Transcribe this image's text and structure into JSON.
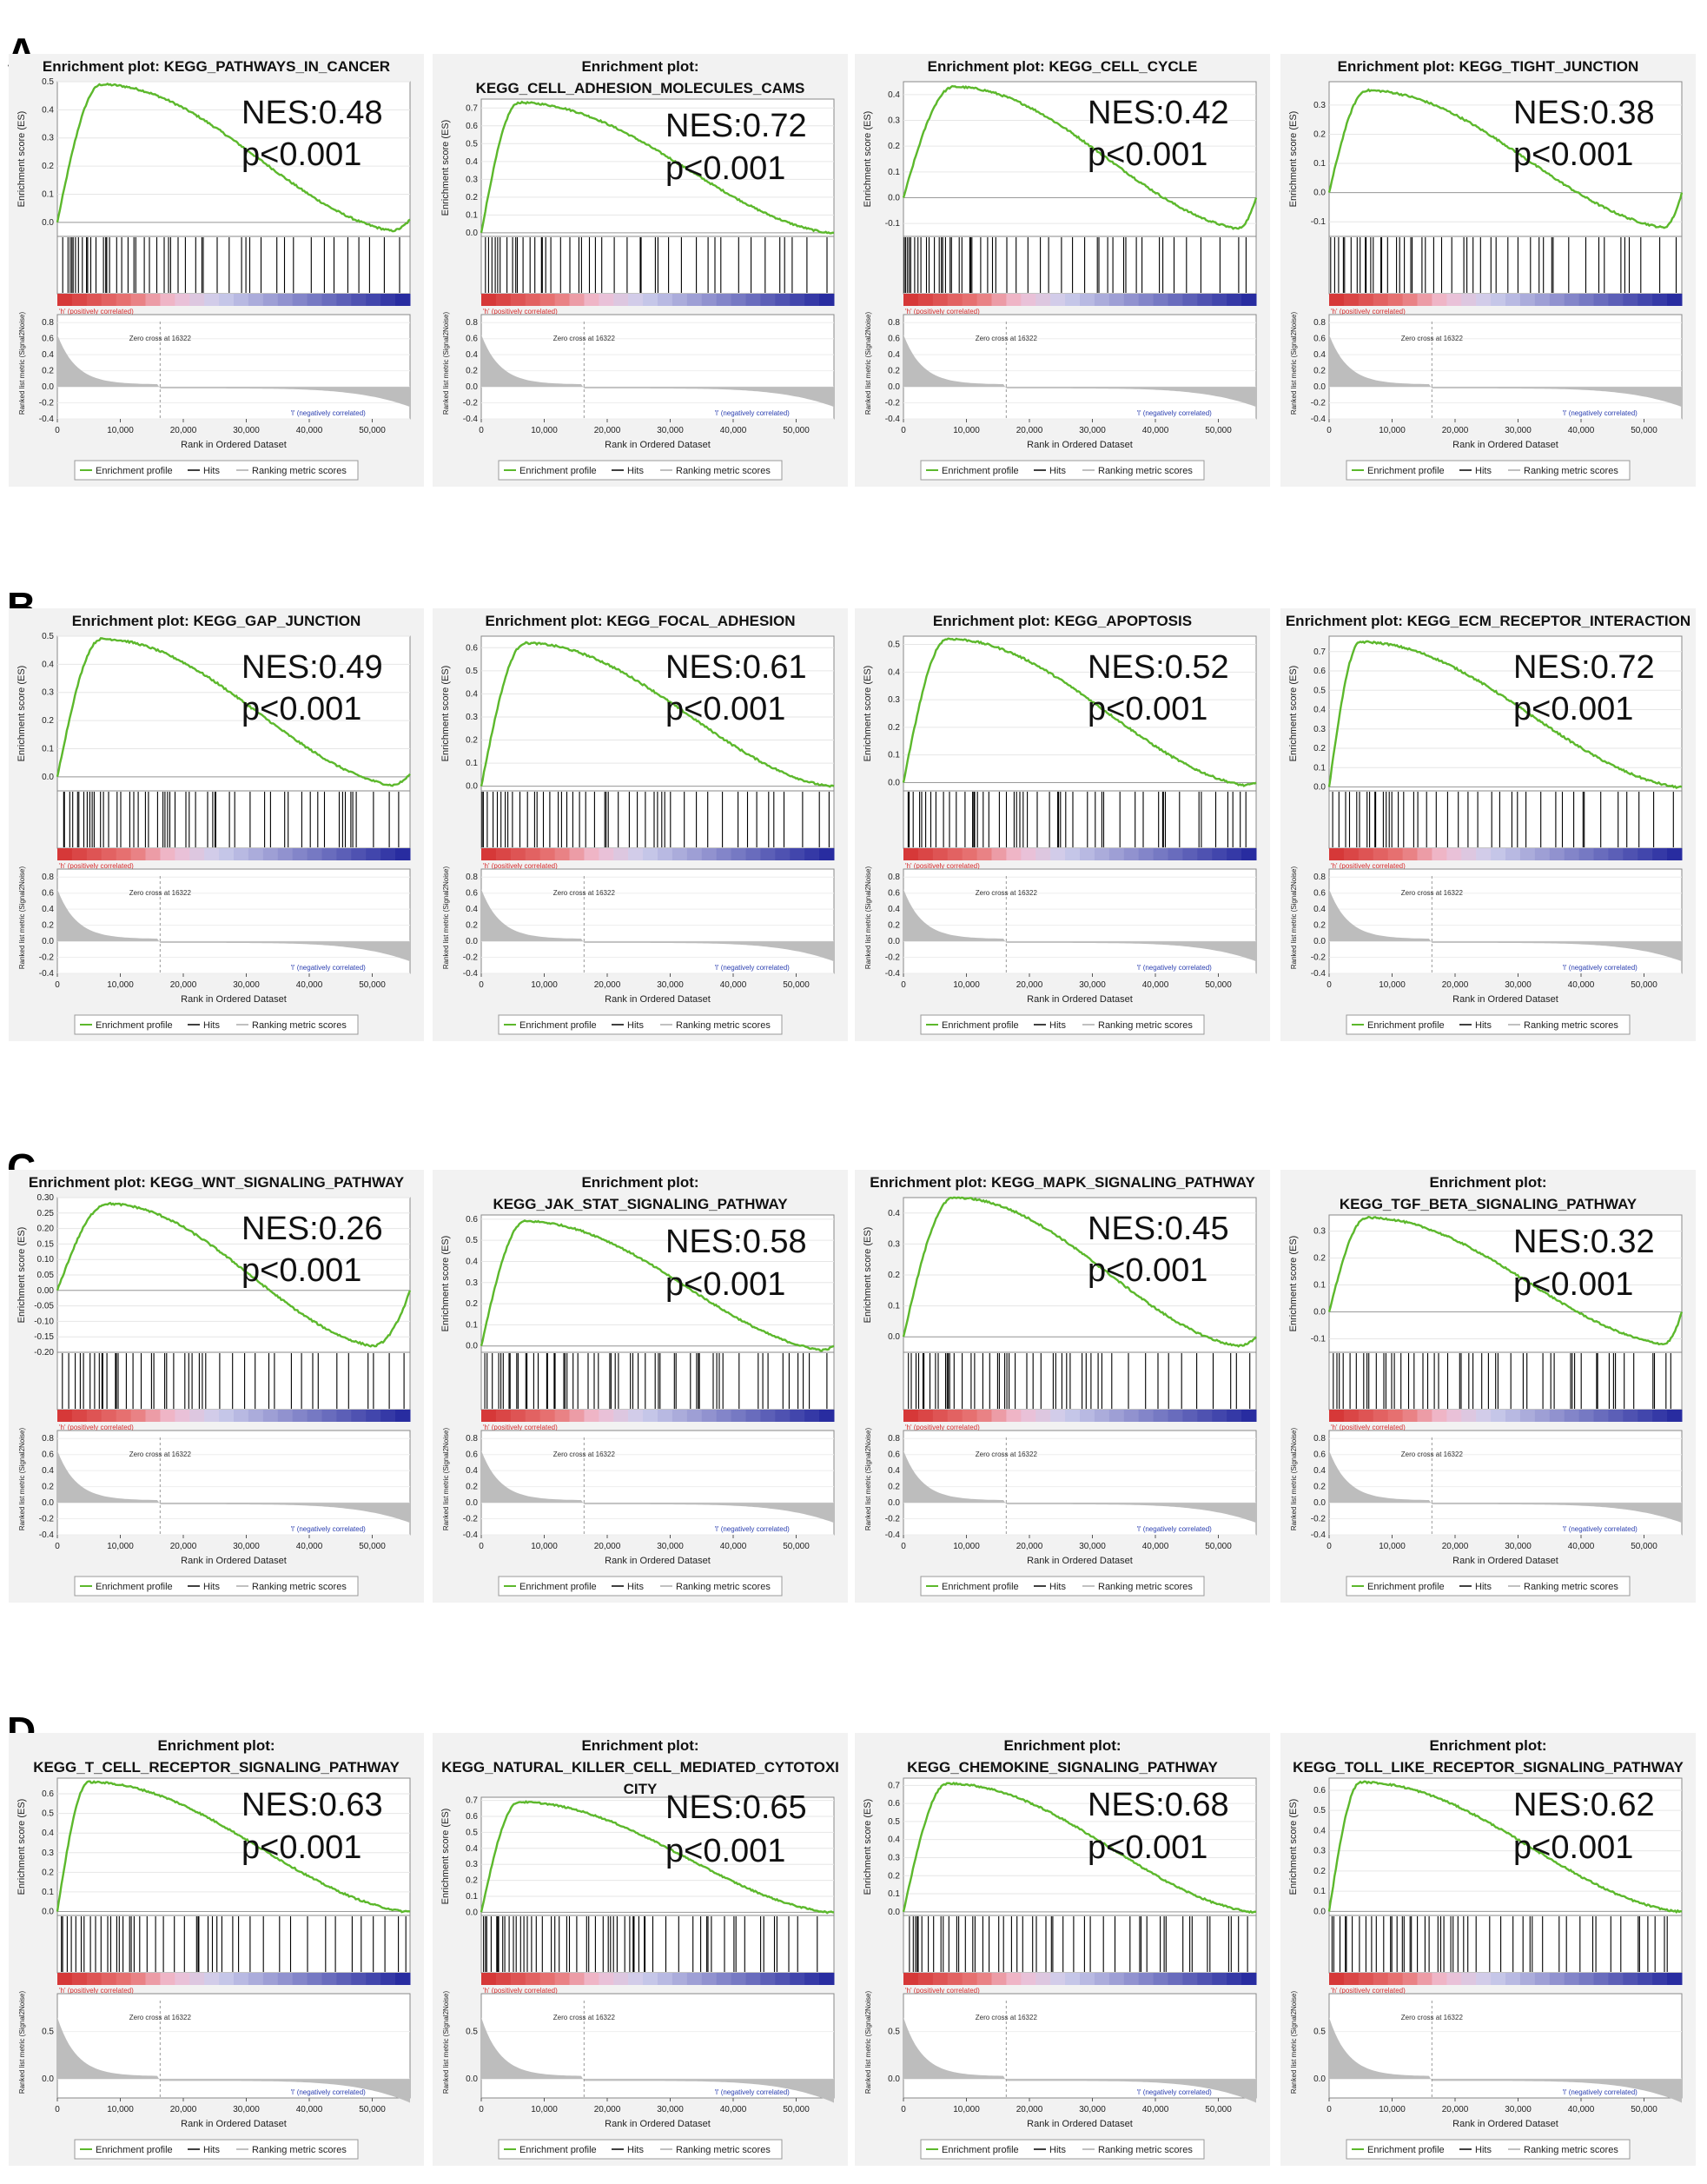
{
  "panels": [
    {
      "letter": "A",
      "plots": [
        {
          "title_lines": [
            "Enrichment plot: KEGG_PATHWAYS_IN_CANCER"
          ],
          "nes": "NES:0.48",
          "p": "p<0.001",
          "ylim": [
            -0.05,
            0.5
          ],
          "yticks": [
            0.5,
            0.4,
            0.3,
            0.2,
            0.1,
            0.0
          ],
          "peak_rank": 7000,
          "peak_es": 0.49,
          "end_es": 0.01,
          "min_rank": 53000,
          "min_es": -0.03
        },
        {
          "title_lines": [
            "Enrichment plot:",
            "KEGG_CELL_ADHESION_MOLECULES_CAMS"
          ],
          "nes": "NES:0.72",
          "p": "p<0.001",
          "ylim": [
            -0.02,
            0.75
          ],
          "yticks": [
            0.7,
            0.6,
            0.5,
            0.4,
            0.3,
            0.2,
            0.1,
            0.0
          ],
          "peak_rank": 6000,
          "peak_es": 0.73,
          "end_es": 0.0,
          "min_rank": 55000,
          "min_es": 0.0
        },
        {
          "title_lines": [
            "Enrichment plot: KEGG_CELL_CYCLE"
          ],
          "nes": "NES:0.42",
          "p": "p<0.001",
          "ylim": [
            -0.15,
            0.45
          ],
          "yticks": [
            0.4,
            0.3,
            0.2,
            0.1,
            0.0,
            -0.1
          ],
          "peak_rank": 8000,
          "peak_es": 0.43,
          "end_es": 0.0,
          "min_rank": 53000,
          "min_es": -0.12
        },
        {
          "title_lines": [
            "Enrichment plot: KEGG_TIGHT_JUNCTION"
          ],
          "nes": "NES:0.38",
          "p": "p<0.001",
          "ylim": [
            -0.15,
            0.38
          ],
          "yticks": [
            0.3,
            0.2,
            0.1,
            0.0,
            -0.1
          ],
          "peak_rank": 6000,
          "peak_es": 0.35,
          "end_es": 0.0,
          "min_rank": 53000,
          "min_es": -0.12
        }
      ]
    },
    {
      "letter": "B",
      "plots": [
        {
          "title_lines": [
            "Enrichment plot: KEGG_GAP_JUNCTION"
          ],
          "nes": "NES:0.49",
          "p": "p<0.001",
          "ylim": [
            -0.05,
            0.5
          ],
          "yticks": [
            0.5,
            0.4,
            0.3,
            0.2,
            0.1,
            0.0
          ],
          "peak_rank": 7000,
          "peak_es": 0.49,
          "end_es": 0.01,
          "min_rank": 53000,
          "min_es": -0.03
        },
        {
          "title_lines": [
            "Enrichment plot: KEGG_FOCAL_ADHESION"
          ],
          "nes": "NES:0.61",
          "p": "p<0.001",
          "ylim": [
            -0.02,
            0.65
          ],
          "yticks": [
            0.6,
            0.5,
            0.4,
            0.3,
            0.2,
            0.1,
            0.0
          ],
          "peak_rank": 7000,
          "peak_es": 0.62,
          "end_es": 0.0,
          "min_rank": 55000,
          "min_es": 0.0
        },
        {
          "title_lines": [
            "Enrichment plot: KEGG_APOPTOSIS"
          ],
          "nes": "NES:0.52",
          "p": "p<0.001",
          "ylim": [
            -0.03,
            0.53
          ],
          "yticks": [
            0.5,
            0.4,
            0.3,
            0.2,
            0.1,
            0.0
          ],
          "peak_rank": 7000,
          "peak_es": 0.52,
          "end_es": 0.0,
          "min_rank": 54000,
          "min_es": -0.01
        },
        {
          "title_lines": [
            "Enrichment plot: KEGG_ECM_RECEPTOR_INTERACTION"
          ],
          "nes": "NES:0.72",
          "p": "p<0.001",
          "ylim": [
            -0.02,
            0.78
          ],
          "yticks": [
            0.7,
            0.6,
            0.5,
            0.4,
            0.3,
            0.2,
            0.1,
            0.0
          ],
          "peak_rank": 5000,
          "peak_es": 0.75,
          "end_es": 0.0,
          "min_rank": 55000,
          "min_es": 0.0
        }
      ]
    },
    {
      "letter": "C",
      "plots": [
        {
          "title_lines": [
            "Enrichment plot: KEGG_WNT_SIGNALING_PATHWAY"
          ],
          "nes": "NES:0.26",
          "p": "p<0.001",
          "ylim": [
            -0.2,
            0.3
          ],
          "yticks": [
            0.3,
            0.25,
            0.2,
            0.15,
            0.1,
            0.05,
            0.0,
            -0.05,
            -0.1,
            -0.15,
            -0.2
          ],
          "ytick_labels": [
            "0.30",
            "0.25",
            "0.20",
            "0.15",
            "0.10",
            "0.05",
            "0.00",
            "-0.05",
            "-0.10",
            "-0.15",
            "-0.20"
          ],
          "peak_rank": 8000,
          "peak_es": 0.28,
          "end_es": 0.0,
          "min_rank": 50000,
          "min_es": -0.18
        },
        {
          "title_lines": [
            "Enrichment plot:",
            "KEGG_JAK_STAT_SIGNALING_PATHWAY"
          ],
          "nes": "NES:0.58",
          "p": "p<0.001",
          "ylim": [
            -0.03,
            0.62
          ],
          "yticks": [
            0.6,
            0.5,
            0.4,
            0.3,
            0.2,
            0.1,
            0.0
          ],
          "peak_rank": 7000,
          "peak_es": 0.59,
          "end_es": 0.0,
          "min_rank": 54000,
          "min_es": -0.02
        },
        {
          "title_lines": [
            "Enrichment plot: KEGG_MAPK_SIGNALING_PATHWAY"
          ],
          "nes": "NES:0.45",
          "p": "p<0.001",
          "ylim": [
            -0.05,
            0.45
          ],
          "yticks": [
            0.4,
            0.3,
            0.2,
            0.1,
            0.0
          ],
          "peak_rank": 8000,
          "peak_es": 0.45,
          "end_es": 0.0,
          "min_rank": 53000,
          "min_es": -0.03
        },
        {
          "title_lines": [
            "Enrichment plot:",
            "KEGG_TGF_BETA_SIGNALING_PATHWAY"
          ],
          "nes": "NES:0.32",
          "p": "p<0.001",
          "ylim": [
            -0.15,
            0.36
          ],
          "yticks": [
            0.3,
            0.2,
            0.1,
            0.0,
            -0.1
          ],
          "peak_rank": 6000,
          "peak_es": 0.35,
          "end_es": 0.0,
          "min_rank": 53000,
          "min_es": -0.12
        }
      ]
    },
    {
      "letter": "D",
      "plots": [
        {
          "title_lines": [
            "Enrichment plot:",
            "KEGG_T_CELL_RECEPTOR_SIGNALING_PATHWAY"
          ],
          "nes": "NES:0.63",
          "p": "p<0.001",
          "ylim": [
            -0.02,
            0.68
          ],
          "yticks": [
            0.6,
            0.5,
            0.4,
            0.3,
            0.2,
            0.1,
            0.0
          ],
          "peak_rank": 5000,
          "peak_es": 0.66,
          "end_es": 0.0,
          "min_rank": 55000,
          "min_es": 0.0
        },
        {
          "title_lines": [
            "Enrichment plot:",
            "KEGG_NATURAL_KILLER_CELL_MEDIATED_CYTOTOXI",
            "CITY"
          ],
          "nes": "NES:0.65",
          "p": "p<0.001",
          "ylim": [
            -0.02,
            0.72
          ],
          "yticks": [
            0.7,
            0.6,
            0.5,
            0.4,
            0.3,
            0.2,
            0.1,
            0.0
          ],
          "peak_rank": 6000,
          "peak_es": 0.69,
          "end_es": 0.0,
          "min_rank": 55000,
          "min_es": 0.0
        },
        {
          "title_lines": [
            "Enrichment plot:",
            "KEGG_CHEMOKINE_SIGNALING_PATHWAY"
          ],
          "nes": "NES:0.68",
          "p": "p<0.001",
          "ylim": [
            -0.02,
            0.74
          ],
          "yticks": [
            0.7,
            0.6,
            0.5,
            0.4,
            0.3,
            0.2,
            0.1,
            0.0
          ],
          "peak_rank": 7000,
          "peak_es": 0.71,
          "end_es": 0.0,
          "min_rank": 55000,
          "min_es": 0.0
        },
        {
          "title_lines": [
            "Enrichment plot:",
            "KEGG_TOLL_LIKE_RECEPTOR_SIGNALING_PATHWAY"
          ],
          "nes": "NES:0.62",
          "p": "p<0.001",
          "ylim": [
            -0.02,
            0.66
          ],
          "yticks": [
            0.6,
            0.5,
            0.4,
            0.3,
            0.2,
            0.1,
            0.0
          ],
          "peak_rank": 5000,
          "peak_es": 0.64,
          "end_es": 0.0,
          "min_rank": 55000,
          "min_es": 0.0
        }
      ]
    }
  ],
  "common": {
    "es_axis_label": "Enrichment score (ES)",
    "metric_axis_label": "Ranked list metric (Signal2Noise)",
    "x_axis_label": "Rank in Ordered Dataset",
    "x_ticks": [
      0,
      10000,
      20000,
      30000,
      40000,
      50000
    ],
    "x_tick_labels": [
      "0",
      "10,000",
      "20,000",
      "30,000",
      "40,000",
      "50,000"
    ],
    "x_max": 56000,
    "metric_ticks_full": [
      0.8,
      0.6,
      0.4,
      0.2,
      0.0,
      -0.2,
      -0.4
    ],
    "metric_ticks_short": [
      0.5,
      0.0
    ],
    "zero_cross_label": "Zero cross at 16322",
    "zero_cross_rank": 16322,
    "pos_label": "'h' (positively correlated)",
    "neg_label": "'l' (negatively correlated)",
    "legend": [
      "Enrichment profile",
      "Hits",
      "Ranking metric scores"
    ],
    "colors": {
      "profile": "#5cb82c",
      "hits": "#000000",
      "metric": "#bdbdbd",
      "pos": "#d83a3a",
      "neg": "#2b2fa0",
      "panel_bg": "#f2f2f2"
    }
  },
  "chart_data": {
    "type": "line",
    "description_units": "enrichment score vs rank in ordered dataset",
    "x_axis": {
      "label": "Rank in Ordered Dataset",
      "range": [
        0,
        56000
      ]
    },
    "y_axis": {
      "label": "Enrichment score (ES)"
    },
    "series": [
      {
        "name": "KEGG_PATHWAYS_IN_CANCER",
        "nes": 0.48,
        "peak_es": 0.49
      },
      {
        "name": "KEGG_CELL_ADHESION_MOLECULES_CAMS",
        "nes": 0.72,
        "peak_es": 0.73
      },
      {
        "name": "KEGG_CELL_CYCLE",
        "nes": 0.42,
        "peak_es": 0.43
      },
      {
        "name": "KEGG_TIGHT_JUNCTION",
        "nes": 0.38,
        "peak_es": 0.35
      },
      {
        "name": "KEGG_GAP_JUNCTION",
        "nes": 0.49,
        "peak_es": 0.49
      },
      {
        "name": "KEGG_FOCAL_ADHESION",
        "nes": 0.61,
        "peak_es": 0.62
      },
      {
        "name": "KEGG_APOPTOSIS",
        "nes": 0.52,
        "peak_es": 0.52
      },
      {
        "name": "KEGG_ECM_RECEPTOR_INTERACTION",
        "nes": 0.72,
        "peak_es": 0.75
      },
      {
        "name": "KEGG_WNT_SIGNALING_PATHWAY",
        "nes": 0.26,
        "peak_es": 0.28
      },
      {
        "name": "KEGG_JAK_STAT_SIGNALING_PATHWAY",
        "nes": 0.58,
        "peak_es": 0.59
      },
      {
        "name": "KEGG_MAPK_SIGNALING_PATHWAY",
        "nes": 0.45,
        "peak_es": 0.45
      },
      {
        "name": "KEGG_TGF_BETA_SIGNALING_PATHWAY",
        "nes": 0.32,
        "peak_es": 0.35
      },
      {
        "name": "KEGG_T_CELL_RECEPTOR_SIGNALING_PATHWAY",
        "nes": 0.63,
        "peak_es": 0.66
      },
      {
        "name": "KEGG_NATURAL_KILLER_CELL_MEDIATED_CYTOTOXICITY",
        "nes": 0.65,
        "peak_es": 0.69
      },
      {
        "name": "KEGG_CHEMOKINE_SIGNALING_PATHWAY",
        "nes": 0.68,
        "peak_es": 0.71
      },
      {
        "name": "KEGG_TOLL_LIKE_RECEPTOR_SIGNALING_PATHWAY",
        "nes": 0.62,
        "peak_es": 0.64
      }
    ]
  }
}
